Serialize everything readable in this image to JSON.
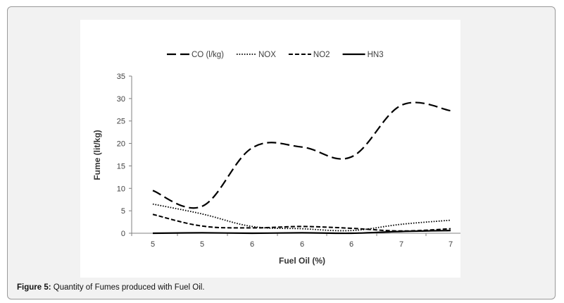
{
  "caption": {
    "label": "Figure 5:",
    "text": "Quantity of Fumes produced with Fuel Oil."
  },
  "chart_data": {
    "type": "line",
    "title": "",
    "xlabel": "Fuel Oil (%)",
    "ylabel": "Fume (lit/kg)",
    "x_tick_labels": [
      "5",
      "5",
      "6",
      "6",
      "6",
      "7",
      "7"
    ],
    "ylim": [
      0,
      35
    ],
    "y_ticks": [
      0,
      5,
      10,
      15,
      20,
      25,
      30,
      35
    ],
    "grid": false,
    "legend_position": "top",
    "series": [
      {
        "name": "CO (l/kg)",
        "style": "longdash",
        "values": [
          9.5,
          6.0,
          19.0,
          19.2,
          17.0,
          28.5,
          27.3
        ]
      },
      {
        "name": "NOX",
        "style": "dotted",
        "values": [
          6.5,
          4.3,
          1.5,
          1.0,
          0.6,
          2.0,
          2.9
        ]
      },
      {
        "name": "NO2",
        "style": "dashed",
        "values": [
          4.2,
          1.6,
          1.2,
          1.5,
          1.1,
          0.5,
          1.0
        ]
      },
      {
        "name": "HN3",
        "style": "solid",
        "values": [
          0.0,
          0.1,
          0.0,
          0.1,
          0.0,
          0.4,
          0.6
        ]
      }
    ],
    "colors": {
      "line": "#000000",
      "axis": "#808080",
      "text": "#404040"
    }
  }
}
